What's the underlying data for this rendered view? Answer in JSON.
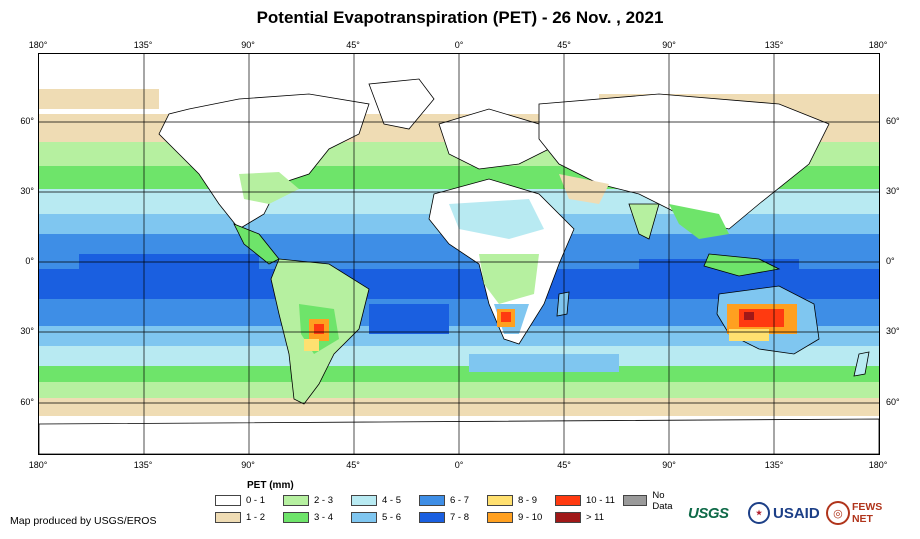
{
  "title": "Potential Evapotranspiration (PET) - 26 Nov. , 2021",
  "axes": {
    "lon_labels": [
      "180°",
      "135°",
      "90°",
      "45°",
      "0°",
      "45°",
      "90°",
      "135°",
      "180°"
    ],
    "lat_labels": [
      "60°",
      "30°",
      "0°",
      "30°",
      "60°"
    ]
  },
  "legend": {
    "title": "PET (mm)",
    "items": [
      {
        "label": "0 - 1",
        "color": "#ffffff"
      },
      {
        "label": "1 - 2",
        "color": "#efdcb4"
      },
      {
        "label": "2 - 3",
        "color": "#b6f0a0"
      },
      {
        "label": "3 - 4",
        "color": "#6ee46a"
      },
      {
        "label": "4 - 5",
        "color": "#b8eaf2"
      },
      {
        "label": "5 - 6",
        "color": "#7fc6f0"
      },
      {
        "label": "6 - 7",
        "color": "#3e8ee6"
      },
      {
        "label": "7 - 8",
        "color": "#1a5fe0"
      },
      {
        "label": "8 - 9",
        "color": "#ffe070"
      },
      {
        "label": "9 - 10",
        "color": "#ffa020"
      },
      {
        "label": "10 - 11",
        "color": "#ff3a10"
      },
      {
        "label": "> 11",
        "color": "#a01818"
      },
      {
        "label": "No Data",
        "color": "#9a9a9a"
      }
    ]
  },
  "credit": "Map produced by USGS/EROS",
  "logos": {
    "usgs": "USGS",
    "usaid": "USAID",
    "fews": "FEWS NET"
  }
}
